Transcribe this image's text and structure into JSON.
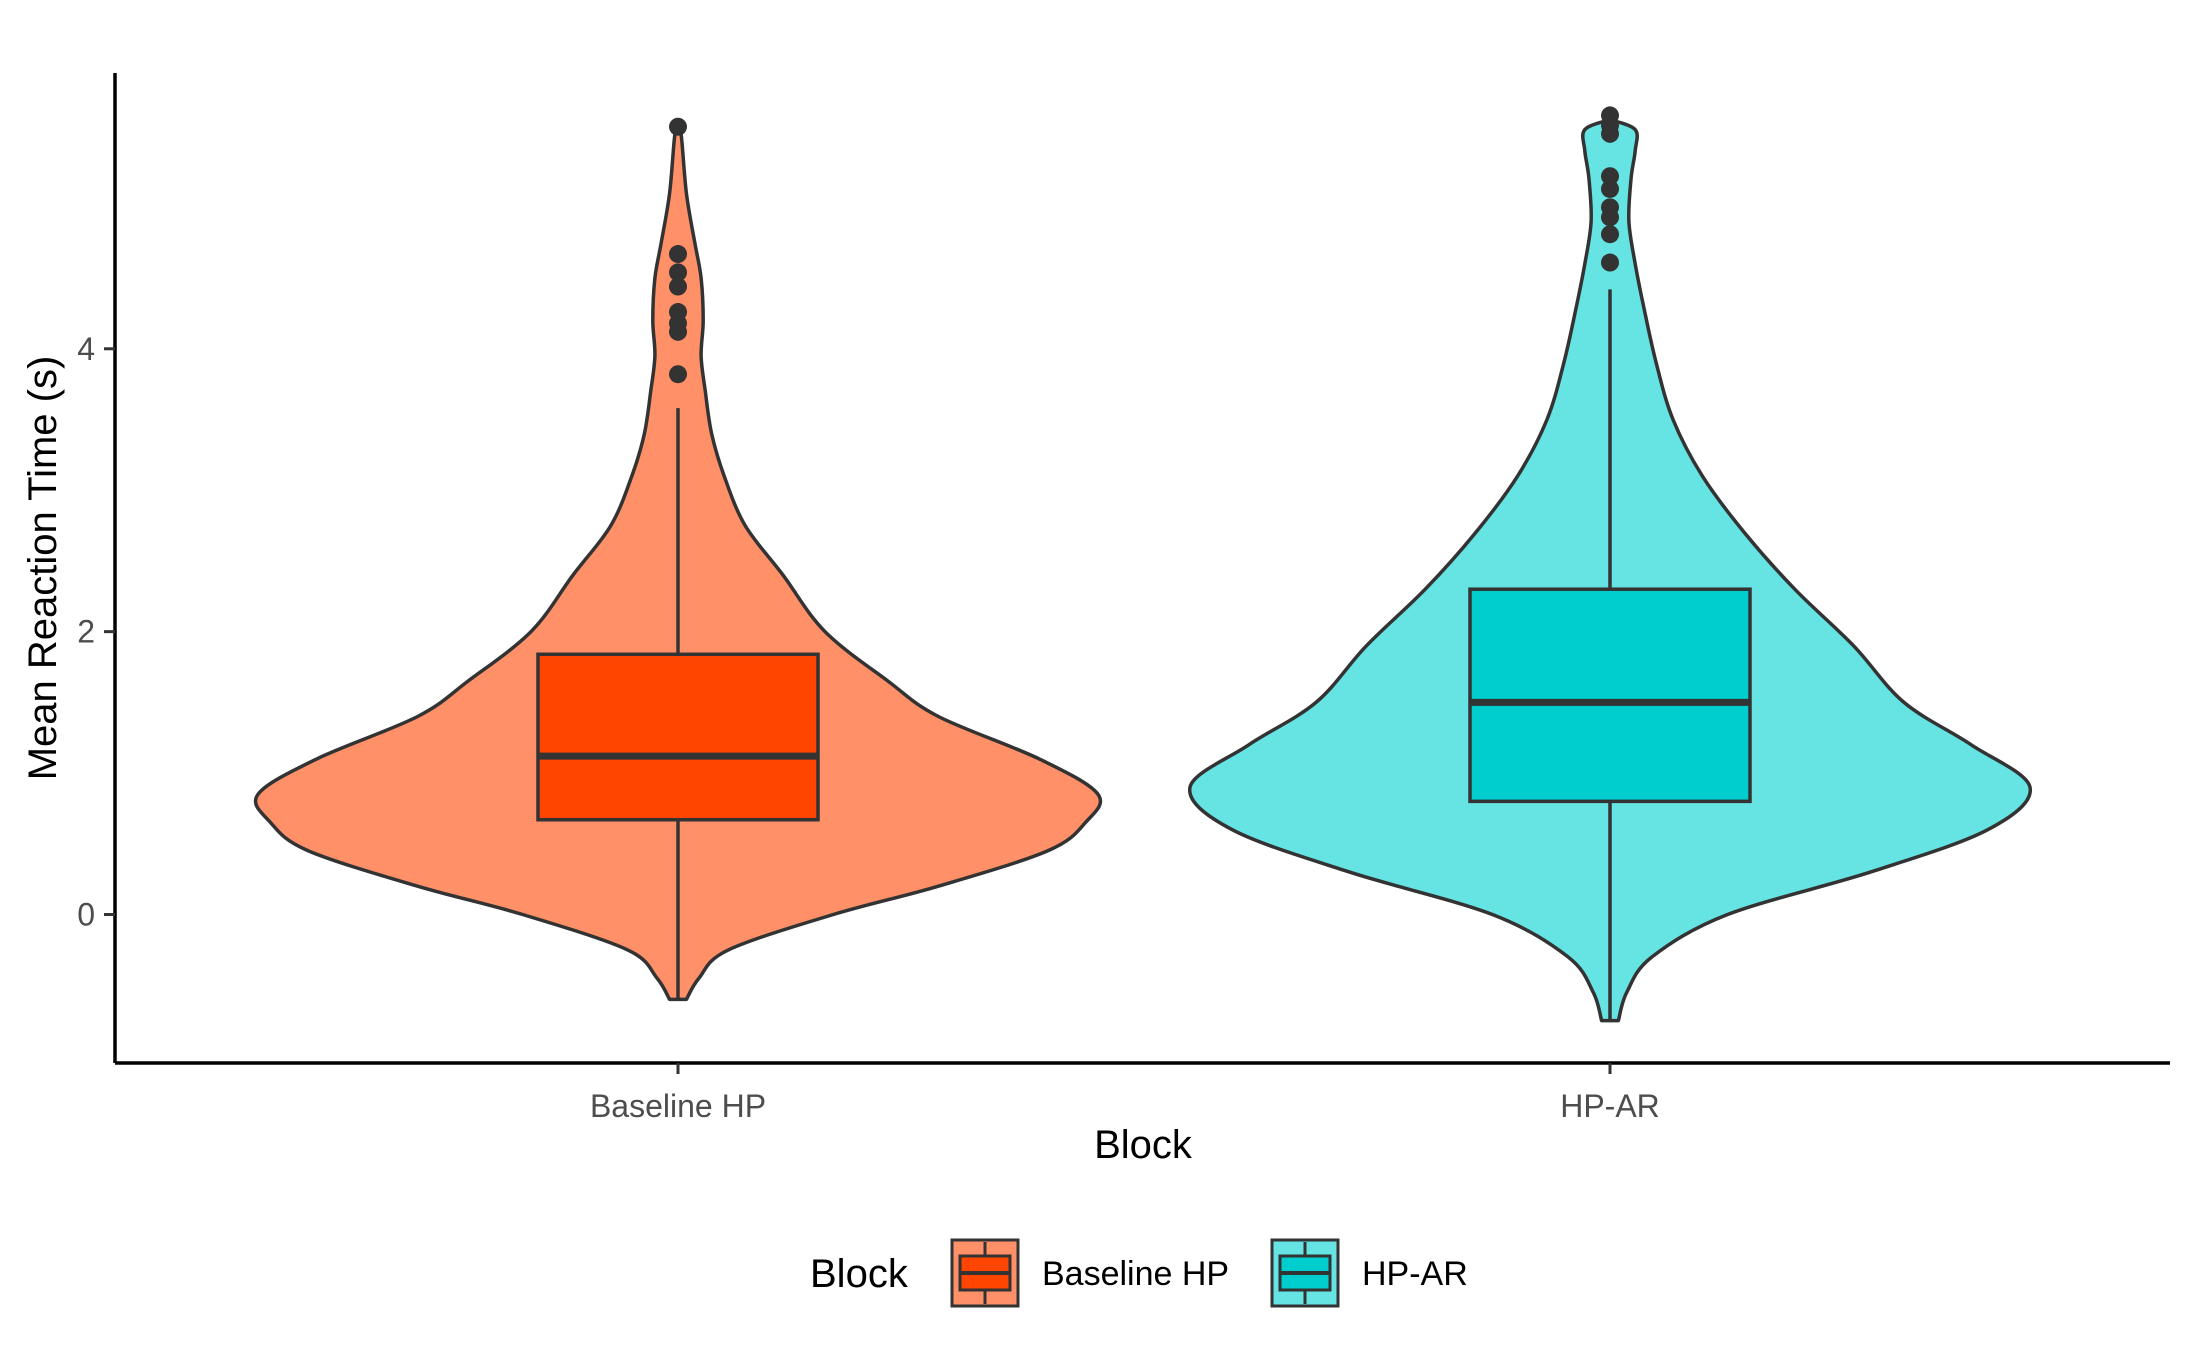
{
  "chart_data": {
    "type": "violin",
    "xlabel": "Block",
    "ylabel": "Mean Reaction Time (s)",
    "ylim": [
      -1.05,
      5.95
    ],
    "y_ticks": [
      0,
      2,
      4
    ],
    "categories": [
      "Baseline HP",
      "HP-AR"
    ],
    "grid": false,
    "legend": {
      "title": "Block",
      "position": "bottom"
    },
    "series": [
      {
        "name": "Baseline HP",
        "box_fill": "#FF4500",
        "violin_fill": "#FF9068",
        "box": {
          "q1": 0.67,
          "median": 1.12,
          "q3": 1.84,
          "whisker_low": -0.6,
          "whisker_high": 3.58
        },
        "outliers": [
          3.82,
          4.12,
          4.18,
          4.26,
          4.44,
          4.54,
          4.67,
          5.57
        ],
        "violin_profile": [
          [
            -0.6,
            0.02
          ],
          [
            -0.45,
            0.05
          ],
          [
            -0.25,
            0.12
          ],
          [
            0.0,
            0.37
          ],
          [
            0.2,
            0.62
          ],
          [
            0.45,
            0.88
          ],
          [
            0.65,
            0.97
          ],
          [
            0.85,
            1.0
          ],
          [
            1.1,
            0.86
          ],
          [
            1.4,
            0.62
          ],
          [
            1.65,
            0.5
          ],
          [
            2.0,
            0.35
          ],
          [
            2.4,
            0.25
          ],
          [
            2.75,
            0.16
          ],
          [
            3.1,
            0.11
          ],
          [
            3.4,
            0.08
          ],
          [
            3.7,
            0.065
          ],
          [
            3.95,
            0.055
          ],
          [
            4.2,
            0.06
          ],
          [
            4.5,
            0.055
          ],
          [
            4.75,
            0.04
          ],
          [
            5.1,
            0.02
          ],
          [
            5.5,
            0.008
          ],
          [
            5.6,
            0.0
          ]
        ]
      },
      {
        "name": "HP-AR",
        "box_fill": "#00CDCD",
        "violin_fill": "#66E3E3",
        "box": {
          "q1": 0.8,
          "median": 1.5,
          "q3": 2.3,
          "whisker_low": -0.75,
          "whisker_high": 4.42
        },
        "outliers": [
          4.61,
          4.81,
          4.93,
          5.0,
          5.13,
          5.22,
          5.52,
          5.58,
          5.65
        ],
        "violin_profile": [
          [
            -0.75,
            0.02
          ],
          [
            -0.55,
            0.04
          ],
          [
            -0.3,
            0.1
          ],
          [
            0.0,
            0.28
          ],
          [
            0.3,
            0.62
          ],
          [
            0.6,
            0.9
          ],
          [
            0.9,
            1.0
          ],
          [
            1.2,
            0.86
          ],
          [
            1.5,
            0.7
          ],
          [
            1.9,
            0.58
          ],
          [
            2.3,
            0.44
          ],
          [
            2.7,
            0.32
          ],
          [
            3.1,
            0.22
          ],
          [
            3.5,
            0.15
          ],
          [
            3.9,
            0.11
          ],
          [
            4.3,
            0.08
          ],
          [
            4.6,
            0.06
          ],
          [
            4.9,
            0.045
          ],
          [
            5.2,
            0.05
          ],
          [
            5.4,
            0.06
          ],
          [
            5.55,
            0.06
          ],
          [
            5.62,
            0.0
          ]
        ]
      }
    ]
  }
}
